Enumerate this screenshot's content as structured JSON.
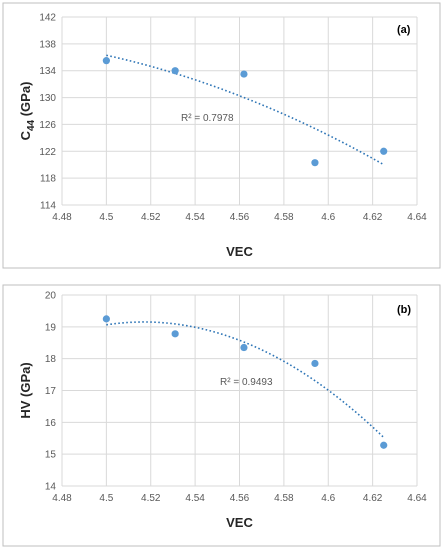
{
  "colors": {
    "marker": "#5b9bd5",
    "trendline": "#2e75b6"
  },
  "chart_data": [
    {
      "type": "scatter",
      "panel_label": "(a)",
      "xlabel": "VEC",
      "ylabel": "C",
      "ylabel_subscript": "44",
      "ylabel_suffix": " (GPa)",
      "xlim": [
        4.48,
        4.64
      ],
      "ylim": [
        114,
        142
      ],
      "xticks": [
        "4.48",
        "4.5",
        "4.52",
        "4.54",
        "4.56",
        "4.58",
        "4.6",
        "4.62",
        "4.64"
      ],
      "yticks": [
        "114",
        "118",
        "122",
        "126",
        "130",
        "134",
        "138",
        "142"
      ],
      "grid": true,
      "x": [
        4.5,
        4.531,
        4.562,
        4.594,
        4.625
      ],
      "y": [
        135.5,
        134.0,
        133.5,
        120.3,
        122.0
      ],
      "trendline": "polynomial (order 2)",
      "r2_label": "R² = 0.7978"
    },
    {
      "type": "scatter",
      "panel_label": "(b)",
      "xlabel": "VEC",
      "ylabel": "HV (GPa)",
      "xlim": [
        4.48,
        4.64
      ],
      "ylim": [
        14,
        20
      ],
      "xticks": [
        "4.48",
        "4.5",
        "4.52",
        "4.54",
        "4.56",
        "4.58",
        "4.6",
        "4.62",
        "4.64"
      ],
      "yticks": [
        "14",
        "15",
        "16",
        "17",
        "18",
        "19",
        "20"
      ],
      "grid": true,
      "x": [
        4.5,
        4.531,
        4.562,
        4.594,
        4.625
      ],
      "y": [
        19.25,
        18.78,
        18.35,
        17.85,
        15.28
      ],
      "trendline": "polynomial (order 2)",
      "r2_label": "R² = 0.9493"
    }
  ]
}
